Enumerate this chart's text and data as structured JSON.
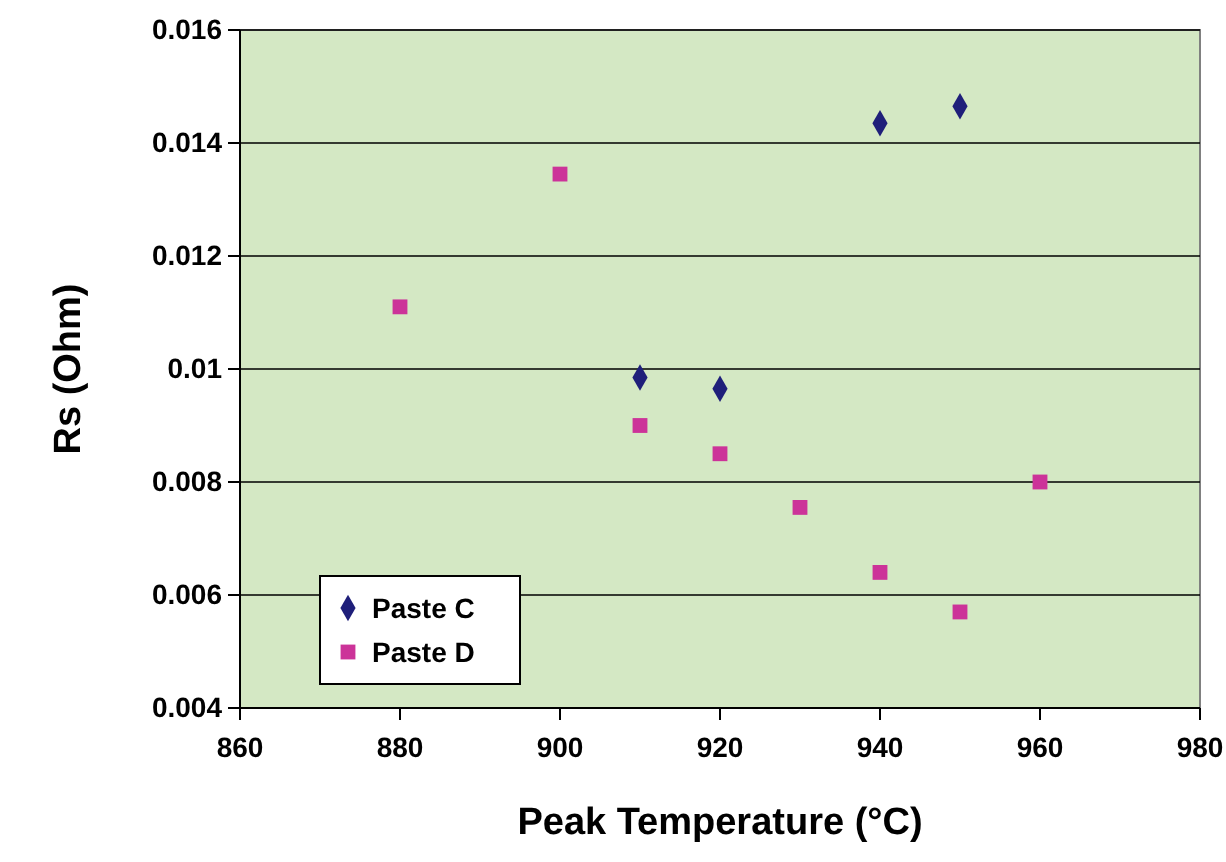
{
  "chart_data": {
    "type": "scatter",
    "xlabel": "Peak Temperature (°C)",
    "ylabel": "Rs (Ohm)",
    "xlim": [
      860,
      980
    ],
    "xticks": [
      860,
      880,
      900,
      920,
      940,
      960,
      980
    ],
    "ylim": [
      0.004,
      0.016
    ],
    "yticks": [
      0.004,
      0.006,
      0.008,
      0.01,
      0.012,
      0.014,
      0.016
    ],
    "grid": "y",
    "legend": "bottom left",
    "series": [
      {
        "name": "Paste C",
        "color": "#1f1f7a",
        "marker": "diamond",
        "x": [
          910,
          920,
          940,
          950
        ],
        "values": [
          0.00985,
          0.00965,
          0.01435,
          0.01465
        ]
      },
      {
        "name": "Paste D",
        "color": "#cc3399",
        "marker": "square",
        "x": [
          880,
          900,
          910,
          920,
          930,
          940,
          950,
          960
        ],
        "values": [
          0.0111,
          0.01345,
          0.009,
          0.0085,
          0.00755,
          0.0064,
          0.0057,
          0.008
        ]
      }
    ]
  }
}
